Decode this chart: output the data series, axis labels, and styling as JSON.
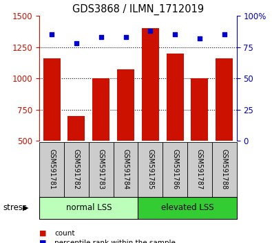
{
  "title": "GDS3868 / ILMN_1712019",
  "samples": [
    "GSM591781",
    "GSM591782",
    "GSM591783",
    "GSM591784",
    "GSM591785",
    "GSM591786",
    "GSM591787",
    "GSM591788"
  ],
  "counts": [
    1160,
    700,
    1000,
    1070,
    1400,
    1200,
    1000,
    1160
  ],
  "percentiles": [
    85,
    78,
    83,
    83,
    88,
    85,
    82,
    85
  ],
  "ylim_left": [
    500,
    1500
  ],
  "ylim_right": [
    0,
    100
  ],
  "yticks_left": [
    500,
    750,
    1000,
    1250,
    1500
  ],
  "yticks_right": [
    0,
    25,
    50,
    75,
    100
  ],
  "bar_color": "#cc1100",
  "dot_color": "#0000cc",
  "group_labels": [
    "normal LSS",
    "elevated LSS"
  ],
  "group_ranges": [
    [
      0,
      4
    ],
    [
      4,
      8
    ]
  ],
  "group_colors_light": "#bbffbb",
  "group_colors_dark": "#33cc33",
  "stress_label": "stress",
  "legend_count_label": "count",
  "legend_pct_label": "percentile rank within the sample",
  "bar_width": 0.7,
  "tick_label_color_left": "#cc1100",
  "tick_label_color_right": "#0000cc",
  "sample_bg_color": "#cccccc"
}
